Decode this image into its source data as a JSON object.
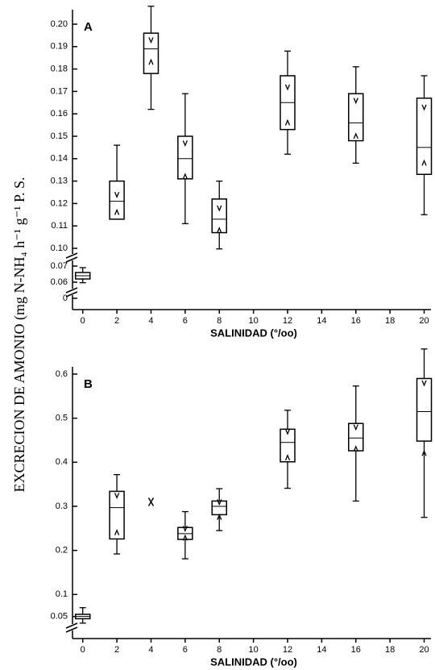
{
  "ylabel": "EXCRECION DE AMONIO (mg N-NH₄ h⁻¹ g⁻¹ P. S.",
  "chart_data": [
    {
      "type": "box",
      "label": "A",
      "xlabel": "SALINIDAD (°/oo)",
      "xlim": [
        -0.6,
        20.4
      ],
      "xticks": [
        0,
        2,
        4,
        6,
        8,
        10,
        12,
        14,
        16,
        18,
        20
      ],
      "ylim": [
        0,
        0.2
      ],
      "yticks": [
        0,
        0.06,
        0.07,
        {
          "value": 0.1,
          "label": "0.10"
        },
        0.11,
        0.12,
        0.13,
        0.14,
        {
          "value": 0.15,
          "label": "0.15"
        },
        0.16,
        0.17,
        0.18,
        0.19,
        {
          "value": 0.2,
          "label": "0.20"
        }
      ],
      "color": "#000000",
      "boxes": [
        {
          "x": 0,
          "whislo": 0.058,
          "q1": 0.062,
          "med": 0.064,
          "q3": 0.066,
          "whishi": 0.069
        },
        {
          "x": 2,
          "whislo": 0.113,
          "q1": 0.113,
          "med": 0.121,
          "q3": 0.13,
          "whishi": 0.146,
          "ci": [
            0.116,
            0.124
          ]
        },
        {
          "x": 4,
          "whislo": 0.162,
          "q1": 0.178,
          "med": 0.189,
          "q3": 0.196,
          "whishi": 0.208,
          "ci": [
            0.183,
            0.193
          ]
        },
        {
          "x": 6,
          "whislo": 0.111,
          "q1": 0.131,
          "med": 0.14,
          "q3": 0.15,
          "whishi": 0.169,
          "ci": [
            0.132,
            0.147
          ]
        },
        {
          "x": 8,
          "whislo": 0.099,
          "q1": 0.107,
          "med": 0.113,
          "q3": 0.122,
          "whishi": 0.13,
          "ci": [
            0.108,
            0.118
          ]
        },
        {
          "x": 12,
          "whislo": 0.142,
          "q1": 0.153,
          "med": 0.165,
          "q3": 0.177,
          "whishi": 0.188,
          "ci": [
            0.156,
            0.172
          ]
        },
        {
          "x": 16,
          "whislo": 0.138,
          "q1": 0.148,
          "med": 0.156,
          "q3": 0.169,
          "whishi": 0.181,
          "ci": [
            0.15,
            0.166
          ]
        },
        {
          "x": 20,
          "whislo": 0.115,
          "q1": 0.133,
          "med": 0.145,
          "q3": 0.167,
          "whishi": 0.177,
          "ci": [
            0.138,
            0.163
          ]
        }
      ]
    },
    {
      "type": "box",
      "label": "B",
      "xlabel": "SALINIDAD (°/oo)",
      "xlim": [
        -0.6,
        20.4
      ],
      "xticks": [
        0,
        2,
        4,
        6,
        8,
        10,
        12,
        14,
        16,
        18,
        20
      ],
      "ylim": [
        0,
        0.6
      ],
      "yticks": [
        0.05,
        0.1,
        0.2,
        0.3,
        0.4,
        0.5,
        0.6
      ],
      "color": "#000000",
      "boxes": [
        {
          "x": 0,
          "whislo": 0.035,
          "q1": 0.045,
          "med": 0.05,
          "q3": 0.055,
          "whishi": 0.07
        },
        {
          "x": 2,
          "whislo": 0.192,
          "q1": 0.226,
          "med": 0.297,
          "q3": 0.334,
          "whishi": 0.372,
          "ci": [
            0.24,
            0.325
          ]
        },
        {
          "x": 4,
          "point": 0.31
        },
        {
          "x": 6,
          "whislo": 0.181,
          "q1": 0.225,
          "med": 0.238,
          "q3": 0.252,
          "whishi": 0.288,
          "ci": [
            0.228,
            0.25
          ]
        },
        {
          "x": 8,
          "whislo": 0.245,
          "q1": 0.281,
          "med": 0.3,
          "q3": 0.312,
          "whishi": 0.34,
          "ci": [
            0.275,
            0.31
          ]
        },
        {
          "x": 12,
          "whislo": 0.341,
          "q1": 0.401,
          "med": 0.445,
          "q3": 0.475,
          "whishi": 0.518,
          "ci": [
            0.41,
            0.47
          ]
        },
        {
          "x": 16,
          "whislo": 0.312,
          "q1": 0.426,
          "med": 0.455,
          "q3": 0.488,
          "whishi": 0.573,
          "ci": [
            0.43,
            0.48
          ]
        },
        {
          "x": 20,
          "whislo": 0.275,
          "q1": 0.448,
          "med": 0.515,
          "q3": 0.59,
          "whishi": 0.657,
          "ci": [
            0.42,
            0.58
          ]
        }
      ]
    }
  ]
}
